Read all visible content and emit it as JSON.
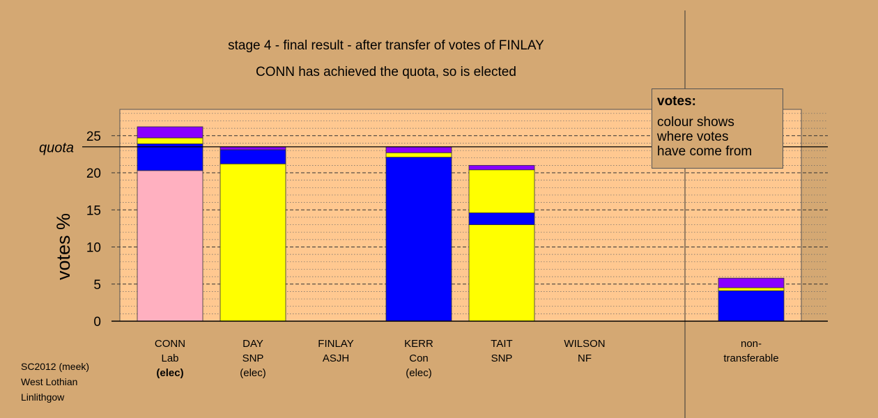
{
  "title": "stage 4 - final result - after transfer of votes of FINLAY",
  "subtitle": "CONN has achieved the quota, so is elected",
  "footer": [
    "SC2012 (meek)",
    "West Lothian",
    "Linlithgow"
  ],
  "legend": {
    "title": "votes:",
    "lines": [
      "colour shows",
      "where votes",
      "have come from"
    ]
  },
  "colors": {
    "background": "#d4a873",
    "plot_area": "#ffc890",
    "Lab": "#ffb0c0",
    "SNP": "#ffff00",
    "Con": "#0000ff",
    "ASJH": "#8800ff"
  },
  "chart_data": {
    "type": "bar",
    "stacked": true,
    "ylabel": "votes %",
    "xlabel": "",
    "ylim": [
      0,
      28
    ],
    "yticks": [
      0,
      5,
      10,
      15,
      20,
      25
    ],
    "quota": 23.5,
    "quota_label": "quota",
    "categories": [
      {
        "lines": [
          "CONN",
          "Lab",
          "(elec)"
        ],
        "bold_last": true
      },
      {
        "lines": [
          "DAY",
          "SNP",
          "(elec)"
        ],
        "bold_last": false
      },
      {
        "lines": [
          "FINLAY",
          "ASJH"
        ],
        "bold_last": false
      },
      {
        "lines": [
          "KERR",
          "Con",
          "(elec)"
        ],
        "bold_last": false
      },
      {
        "lines": [
          "TAIT",
          "SNP"
        ],
        "bold_last": false
      },
      {
        "lines": [
          "WILSON",
          "NF"
        ],
        "bold_last": false
      },
      {
        "lines": [
          "non-",
          "transferable"
        ],
        "bold_last": false
      }
    ],
    "stacks": [
      [
        {
          "from": "Lab",
          "value": 20.3
        },
        {
          "from": "Con",
          "value": 3.6
        },
        {
          "from": "SNP",
          "value": 0.8
        },
        {
          "from": "ASJH",
          "value": 1.5
        }
      ],
      [
        {
          "from": "SNP",
          "value": 21.2
        },
        {
          "from": "Con",
          "value": 1.9
        },
        {
          "from": "ASJH",
          "value": 0.4
        }
      ],
      [],
      [
        {
          "from": "Con",
          "value": 22.1
        },
        {
          "from": "SNP",
          "value": 0.6
        },
        {
          "from": "ASJH",
          "value": 0.8
        }
      ],
      [
        {
          "from": "SNP",
          "value": 13.0
        },
        {
          "from": "Con",
          "value": 1.6
        },
        {
          "from": "SNP",
          "value": 5.8
        },
        {
          "from": "ASJH",
          "value": 0.6
        }
      ],
      [],
      [
        {
          "from": "Con",
          "value": 4.1
        },
        {
          "from": "SNP",
          "value": 0.4
        },
        {
          "from": "ASJH",
          "value": 1.3
        }
      ]
    ]
  }
}
